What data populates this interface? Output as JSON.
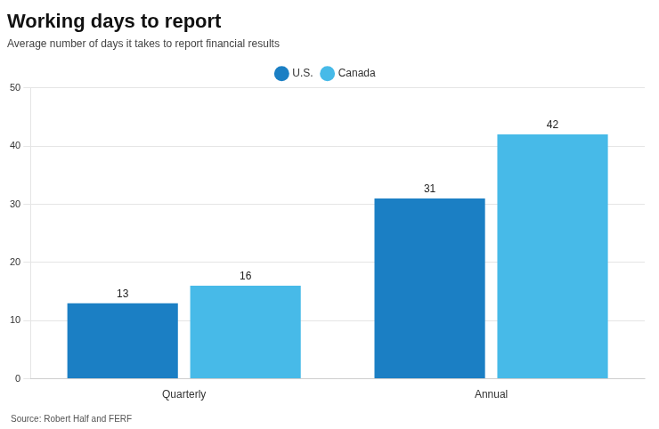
{
  "chart_data": {
    "type": "bar",
    "title": "Working days to report",
    "subtitle": "Average number of days it takes to report financial results",
    "source": "Source: Robert Half and FERF",
    "categories": [
      "Quarterly",
      "Annual"
    ],
    "series": [
      {
        "name": "U.S.",
        "color": "#1b7fc4",
        "values": [
          13,
          31
        ]
      },
      {
        "name": "Canada",
        "color": "#47bae8",
        "values": [
          16,
          42
        ]
      }
    ],
    "ylim": [
      0,
      50
    ],
    "yticks": [
      0,
      10,
      20,
      30,
      40,
      50
    ],
    "grid": true,
    "legend": "top",
    "data_labels": true
  }
}
